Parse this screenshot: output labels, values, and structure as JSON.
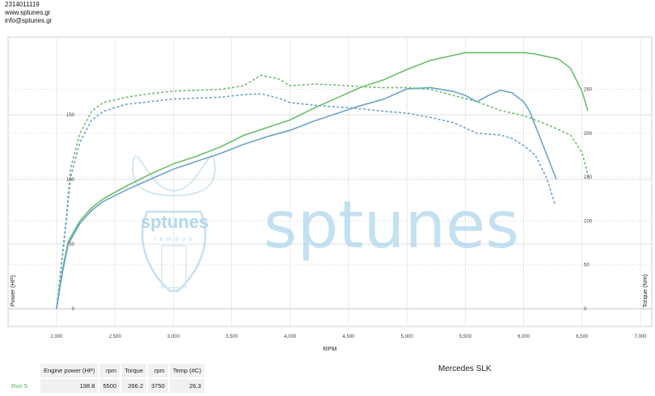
{
  "contact": {
    "phone": "2314011119",
    "website": "www.sptunes.gr",
    "email": "info@sptunes.gr"
  },
  "watermark": {
    "text": "sptunes",
    "badge_text": "sptunes",
    "badge_sub": "remaps"
  },
  "vehicle": "Mercedes SLK",
  "results_table": {
    "headers": [
      "Engine power (HP)",
      "rpm",
      "Torque",
      "rpm",
      "Temp (#C)"
    ],
    "rows": [
      {
        "run": "Run 5",
        "values": [
          "198.8",
          "5500",
          "266.2",
          "3750",
          "26.3"
        ]
      }
    ]
  },
  "chart_data": {
    "type": "line",
    "xlabel": "RPM",
    "ylabel_left": "Power (HP)",
    "ylabel_right": "Torque (Nm)",
    "x_ticks": [
      "2,000",
      "2,500",
      "3,000",
      "3,500",
      "4,000",
      "4,500",
      "5,000",
      "5,500",
      "6,000",
      "6,500",
      "7,000"
    ],
    "xlim": [
      2000,
      7000
    ],
    "left_ticks": [
      "0",
      "50",
      "100",
      "150"
    ],
    "left_tick_values": [
      0,
      50,
      100,
      150
    ],
    "ylim_left": [
      0,
      190
    ],
    "right_ticks": [
      "0",
      "50",
      "100",
      "150",
      "200",
      "250"
    ],
    "right_tick_values": [
      0,
      50,
      100,
      150,
      200,
      250
    ],
    "ylim_right": [
      0,
      280
    ],
    "colors": {
      "green": "#6cbf6c",
      "blue": "#6aa4cc"
    },
    "series": [
      {
        "axis": "left",
        "color": "green",
        "dash": false,
        "points": [
          [
            2000,
            0
          ],
          [
            2050,
            30
          ],
          [
            2100,
            52
          ],
          [
            2200,
            68
          ],
          [
            2300,
            78
          ],
          [
            2400,
            85
          ],
          [
            2600,
            95
          ],
          [
            2800,
            104
          ],
          [
            3000,
            112
          ],
          [
            3200,
            118
          ],
          [
            3400,
            125
          ],
          [
            3600,
            134
          ],
          [
            3800,
            140
          ],
          [
            4000,
            146
          ],
          [
            4200,
            155
          ],
          [
            4400,
            163
          ],
          [
            4600,
            171
          ],
          [
            4800,
            177
          ],
          [
            5000,
            185
          ],
          [
            5200,
            192
          ],
          [
            5400,
            196
          ],
          [
            5500,
            198
          ],
          [
            5800,
            198
          ],
          [
            6000,
            198
          ],
          [
            6100,
            197
          ],
          [
            6300,
            193
          ],
          [
            6400,
            186
          ],
          [
            6500,
            168
          ],
          [
            6550,
            153
          ]
        ]
      },
      {
        "axis": "left",
        "color": "blue",
        "dash": false,
        "points": [
          [
            2000,
            0
          ],
          [
            2050,
            28
          ],
          [
            2100,
            50
          ],
          [
            2200,
            66
          ],
          [
            2300,
            76
          ],
          [
            2400,
            83
          ],
          [
            2600,
            92
          ],
          [
            2800,
            100
          ],
          [
            3000,
            108
          ],
          [
            3200,
            114
          ],
          [
            3400,
            120
          ],
          [
            3600,
            127
          ],
          [
            3800,
            133
          ],
          [
            4000,
            138
          ],
          [
            4200,
            145
          ],
          [
            4400,
            151
          ],
          [
            4600,
            157
          ],
          [
            4800,
            162
          ],
          [
            5000,
            170
          ],
          [
            5200,
            171
          ],
          [
            5400,
            168
          ],
          [
            5500,
            165
          ],
          [
            5600,
            160
          ],
          [
            5700,
            165
          ],
          [
            5800,
            169
          ],
          [
            5900,
            167
          ],
          [
            6000,
            160
          ],
          [
            6050,
            153
          ],
          [
            6150,
            130
          ],
          [
            6280,
            100
          ]
        ]
      },
      {
        "axis": "right",
        "color": "green",
        "dash": true,
        "points": [
          [
            2000,
            0
          ],
          [
            2080,
            100
          ],
          [
            2120,
            160
          ],
          [
            2200,
            200
          ],
          [
            2300,
            225
          ],
          [
            2400,
            235
          ],
          [
            2600,
            241
          ],
          [
            2800,
            245
          ],
          [
            3000,
            248
          ],
          [
            3200,
            249
          ],
          [
            3400,
            250
          ],
          [
            3600,
            254
          ],
          [
            3750,
            266
          ],
          [
            3900,
            262
          ],
          [
            4000,
            254
          ],
          [
            4200,
            256
          ],
          [
            4400,
            255
          ],
          [
            4600,
            253
          ],
          [
            4800,
            252
          ],
          [
            5000,
            252
          ],
          [
            5200,
            250
          ],
          [
            5400,
            243
          ],
          [
            5600,
            236
          ],
          [
            5800,
            226
          ],
          [
            6000,
            220
          ],
          [
            6200,
            210
          ],
          [
            6400,
            198
          ],
          [
            6500,
            178
          ],
          [
            6560,
            147
          ]
        ]
      },
      {
        "axis": "right",
        "color": "blue",
        "dash": true,
        "points": [
          [
            2000,
            0
          ],
          [
            2080,
            95
          ],
          [
            2120,
            150
          ],
          [
            2200,
            190
          ],
          [
            2300,
            215
          ],
          [
            2400,
            225
          ],
          [
            2600,
            233
          ],
          [
            2800,
            236
          ],
          [
            3000,
            239
          ],
          [
            3200,
            240
          ],
          [
            3400,
            241
          ],
          [
            3600,
            244
          ],
          [
            3750,
            245
          ],
          [
            3900,
            240
          ],
          [
            4000,
            235
          ],
          [
            4200,
            232
          ],
          [
            4400,
            230
          ],
          [
            4600,
            228
          ],
          [
            4800,
            225
          ],
          [
            5000,
            223
          ],
          [
            5200,
            218
          ],
          [
            5400,
            212
          ],
          [
            5600,
            200
          ],
          [
            5800,
            198
          ],
          [
            5900,
            194
          ],
          [
            6000,
            186
          ],
          [
            6100,
            175
          ],
          [
            6200,
            148
          ],
          [
            6270,
            118
          ]
        ]
      }
    ]
  }
}
